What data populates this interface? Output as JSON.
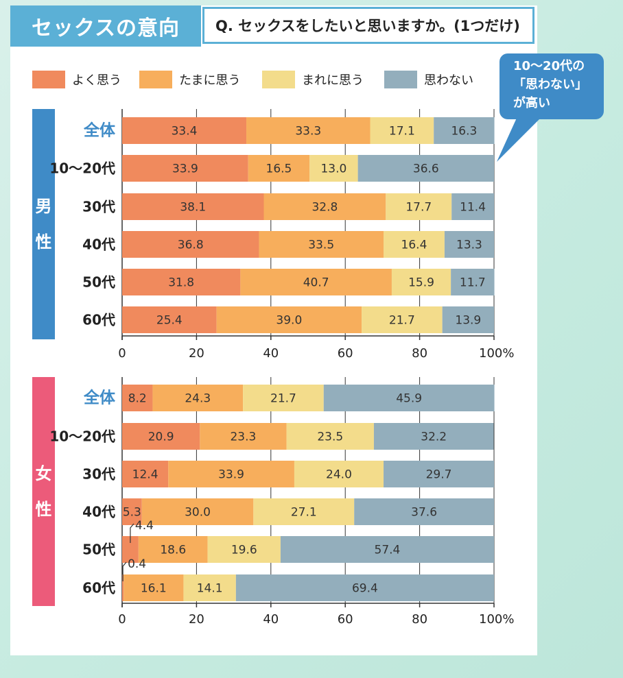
{
  "header": {
    "title": "セックスの意向",
    "question": "Q. セックスをしたいと思いますか。(1つだけ)"
  },
  "callout": {
    "lines": [
      "10〜20代の",
      "「思わない」",
      "が高い"
    ]
  },
  "colors": {
    "yoku": "#f08a5d",
    "tamani": "#f7ae5c",
    "mareni": "#f3dc8b",
    "omowanai": "#93aebc",
    "male": "#3f8bc7",
    "female": "#ec5b7a",
    "title_bg": "#5bb0d6"
  },
  "legend": [
    "よく思う",
    "たまに思う",
    "まれに思う",
    "思わない"
  ],
  "sections": {
    "male_label": [
      "男",
      "性"
    ],
    "female_label": [
      "女",
      "性"
    ]
  },
  "chart_data": [
    {
      "type": "bar",
      "orientation": "horizontal",
      "stacked": true,
      "group": "男性",
      "categories": [
        "全体",
        "10〜20代",
        "30代",
        "40代",
        "50代",
        "60代"
      ],
      "series": [
        {
          "name": "よく思う",
          "values": [
            33.4,
            33.9,
            38.1,
            36.8,
            31.8,
            25.4
          ]
        },
        {
          "name": "たまに思う",
          "values": [
            33.3,
            16.5,
            32.8,
            33.5,
            40.7,
            39.0
          ]
        },
        {
          "name": "まれに思う",
          "values": [
            17.1,
            13.0,
            17.7,
            16.4,
            15.9,
            21.7
          ]
        },
        {
          "name": "思わない",
          "values": [
            16.3,
            36.6,
            11.4,
            13.3,
            11.7,
            13.9
          ]
        }
      ],
      "xlim": [
        0,
        100
      ],
      "xticks": [
        "0",
        "20",
        "40",
        "60",
        "80",
        "100%"
      ],
      "grid": true
    },
    {
      "type": "bar",
      "orientation": "horizontal",
      "stacked": true,
      "group": "女性",
      "categories": [
        "全体",
        "10〜20代",
        "30代",
        "40代",
        "50代",
        "60代"
      ],
      "series": [
        {
          "name": "よく思う",
          "values": [
            8.2,
            20.9,
            12.4,
            5.3,
            4.4,
            0.4
          ]
        },
        {
          "name": "たまに思う",
          "values": [
            24.3,
            23.3,
            33.9,
            30.0,
            18.6,
            16.1
          ]
        },
        {
          "name": "まれに思う",
          "values": [
            21.7,
            23.5,
            24.0,
            27.1,
            19.6,
            14.1
          ]
        },
        {
          "name": "思わない",
          "values": [
            45.9,
            32.2,
            29.7,
            37.6,
            57.4,
            69.4
          ]
        }
      ],
      "xlim": [
        0,
        100
      ],
      "xticks": [
        "0",
        "20",
        "40",
        "60",
        "80",
        "100%"
      ],
      "grid": true
    }
  ]
}
